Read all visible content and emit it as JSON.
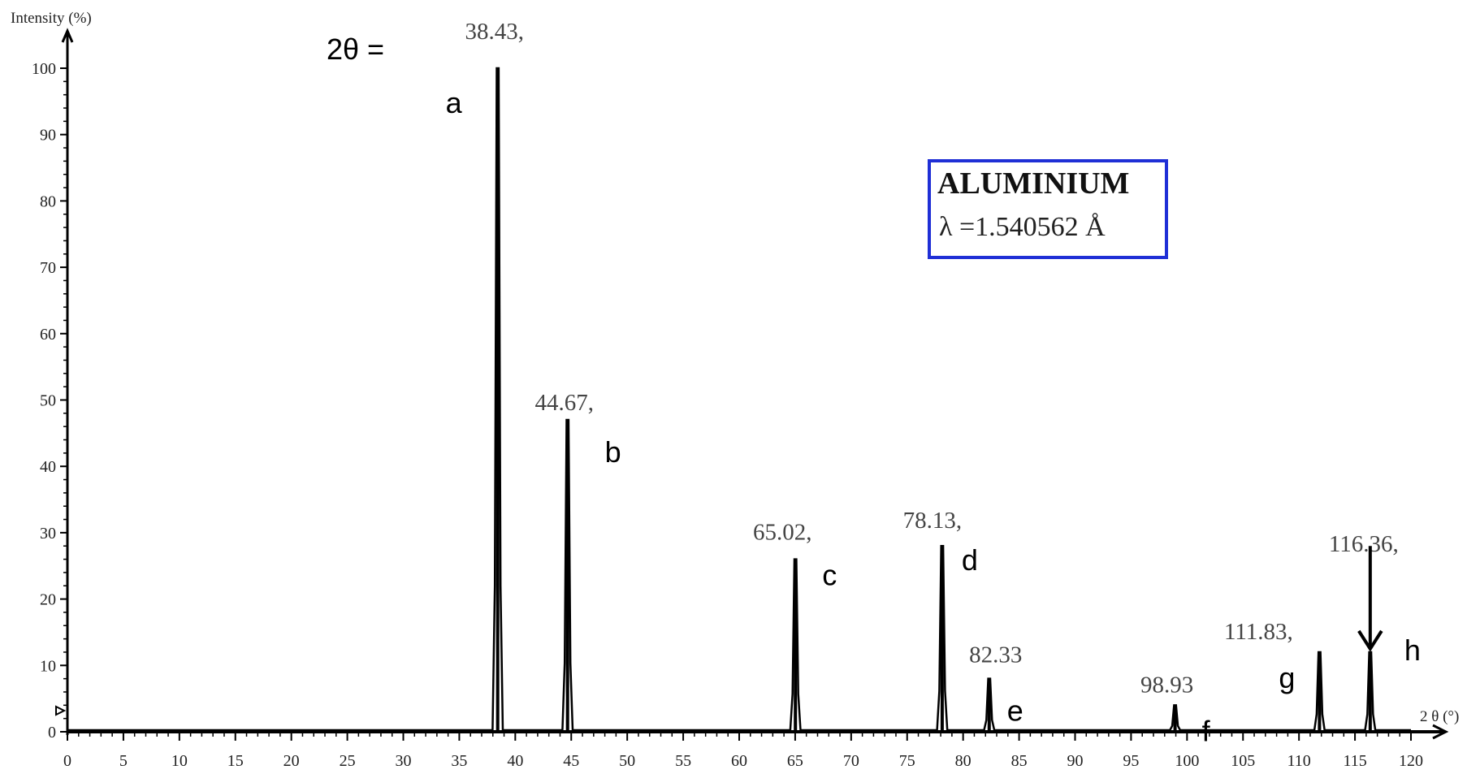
{
  "chart_data": {
    "type": "line",
    "ylabel": "Intensity (%)",
    "xlabel": "2 θ (°)",
    "xlim": [
      0,
      120
    ],
    "ylim": [
      0,
      100
    ],
    "x_ticks": [
      0,
      5,
      10,
      15,
      20,
      25,
      30,
      35,
      40,
      45,
      50,
      55,
      60,
      65,
      70,
      75,
      80,
      85,
      90,
      95,
      100,
      105,
      110,
      115,
      120
    ],
    "y_ticks": [
      0,
      10,
      20,
      30,
      40,
      50,
      60,
      70,
      80,
      90,
      100
    ],
    "two_theta_prefix": "2θ =",
    "legend": {
      "material": "ALUMINIUM",
      "wavelength": "λ =1.540562 Å",
      "border_color": "#1f2fd6"
    },
    "peaks": [
      {
        "letter": "a",
        "label": "38.43,",
        "two_theta": 38.43,
        "intensity": 100
      },
      {
        "letter": "b",
        "label": "44.67,",
        "two_theta": 44.67,
        "intensity": 47
      },
      {
        "letter": "c",
        "label": "65.02,",
        "two_theta": 65.02,
        "intensity": 26
      },
      {
        "letter": "d",
        "label": "78.13,",
        "two_theta": 78.13,
        "intensity": 28
      },
      {
        "letter": "e",
        "label": "82.33",
        "two_theta": 82.33,
        "intensity": 8
      },
      {
        "letter": "f",
        "label": "98.93",
        "two_theta": 98.93,
        "intensity": 4
      },
      {
        "letter": "g",
        "label": "111.83,",
        "two_theta": 111.83,
        "intensity": 12
      },
      {
        "letter": "h",
        "label": "116.36,",
        "two_theta": 116.36,
        "intensity": 12
      }
    ],
    "arrow_peak": "h"
  }
}
